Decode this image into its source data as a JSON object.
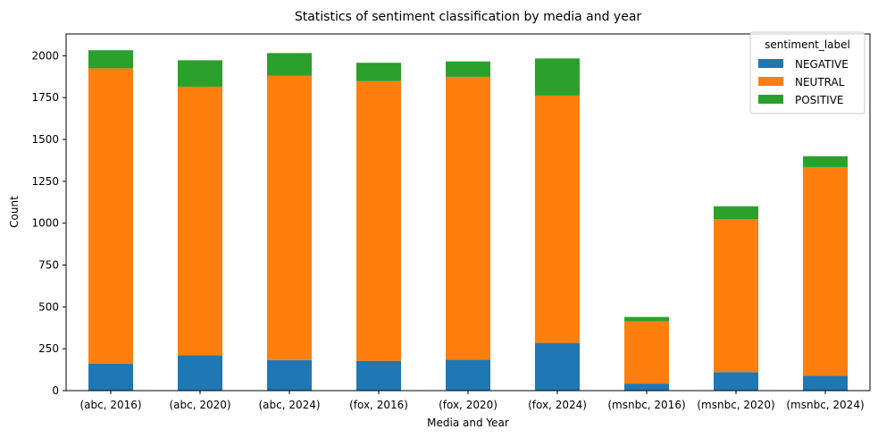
{
  "chart_data": {
    "type": "bar",
    "stacked": true,
    "title": "Statistics of sentiment classification by media and year",
    "xlabel": "Media and Year",
    "ylabel": "Count",
    "ylim": [
      0,
      2130
    ],
    "yticks": [
      0,
      250,
      500,
      750,
      1000,
      1250,
      1500,
      1750,
      2000
    ],
    "categories": [
      "(abc, 2016)",
      "(abc, 2020)",
      "(abc, 2024)",
      "(fox, 2016)",
      "(fox, 2020)",
      "(fox, 2024)",
      "(msnbc, 2016)",
      "(msnbc, 2020)",
      "(msnbc, 2024)"
    ],
    "legend": {
      "title": "sentiment_label",
      "placement": "top-right"
    },
    "series": [
      {
        "name": "NEGATIVE",
        "color": "#1f77b4",
        "values": [
          160,
          212,
          183,
          178,
          184,
          285,
          42,
          110,
          88
        ]
      },
      {
        "name": "NEUTRAL",
        "color": "#ff7f0e",
        "values": [
          1765,
          1603,
          1697,
          1670,
          1690,
          1477,
          372,
          913,
          1247
        ]
      },
      {
        "name": "POSITIVE",
        "color": "#2ca02c",
        "values": [
          108,
          158,
          136,
          110,
          92,
          222,
          26,
          78,
          65
        ]
      }
    ],
    "grid": false
  }
}
